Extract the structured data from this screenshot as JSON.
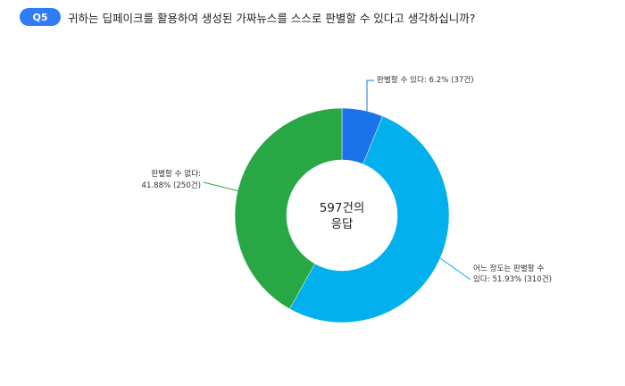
{
  "question": {
    "badge": "Q5",
    "text": "귀하는 딥페이크를 활용하여 생성된 가짜뉴스를 스스로 판별할 수 있다고 생각하십니까?"
  },
  "chart_data": {
    "type": "pie",
    "donut": true,
    "center_label": [
      "597건의",
      "응답"
    ],
    "slices": [
      {
        "label": "판별할 수 있다",
        "percent": 6.2,
        "count": 37,
        "color": "#1a73e8",
        "label_lines": [
          "판별할 수 있다: 6.2% (37건)"
        ]
      },
      {
        "label": "어느 정도는 판별할 수 있다",
        "percent": 51.93,
        "count": 310,
        "color": "#03b0ee",
        "label_lines": [
          "어느 정도는 판별할 수",
          "있다: 51.93% (310건)"
        ]
      },
      {
        "label": "판별할 수 없다",
        "percent": 41.88,
        "count": 250,
        "color": "#28a745",
        "label_lines": [
          "판별할 수 없다:",
          "41.88% (250건)"
        ]
      }
    ]
  }
}
